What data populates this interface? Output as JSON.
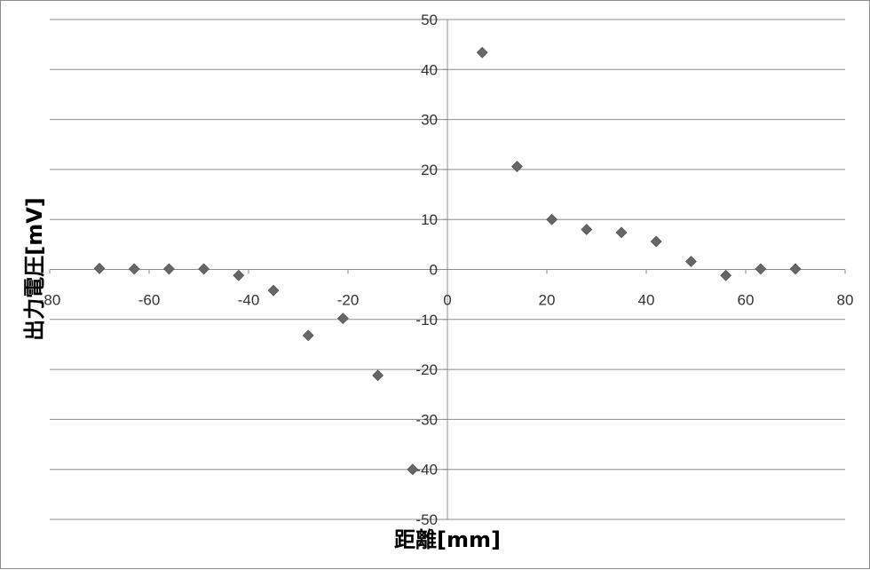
{
  "chart_data": {
    "type": "scatter",
    "title": "",
    "xlabel": "距離[mm]",
    "ylabel": "出力電圧[mV]",
    "xlim": [
      -80,
      80
    ],
    "ylim": [
      -50,
      50
    ],
    "x_ticks": [
      -80,
      -60,
      -40,
      -20,
      0,
      20,
      40,
      60,
      80
    ],
    "y_ticks": [
      50,
      40,
      30,
      20,
      10,
      0,
      -10,
      -20,
      -30,
      -40,
      -50
    ],
    "grid": "horizontal",
    "legend": "none",
    "marker": "diamond",
    "marker_color": "#666666",
    "series": [
      {
        "points": [
          {
            "x": -70,
            "y": 0.2
          },
          {
            "x": -63,
            "y": 0.1
          },
          {
            "x": -56,
            "y": 0.1
          },
          {
            "x": -49,
            "y": 0.1
          },
          {
            "x": -42,
            "y": -1.2
          },
          {
            "x": -35,
            "y": -4.2
          },
          {
            "x": -28,
            "y": -13.2
          },
          {
            "x": -21,
            "y": -9.8
          },
          {
            "x": -14,
            "y": -21.2
          },
          {
            "x": -7,
            "y": -40.0
          },
          {
            "x": 7,
            "y": 43.4
          },
          {
            "x": 14,
            "y": 20.6
          },
          {
            "x": 21,
            "y": 10.0
          },
          {
            "x": 28,
            "y": 8.0
          },
          {
            "x": 35,
            "y": 7.4
          },
          {
            "x": 42,
            "y": 5.6
          },
          {
            "x": 49,
            "y": 1.6
          },
          {
            "x": 56,
            "y": -1.2
          },
          {
            "x": 63,
            "y": 0.1
          },
          {
            "x": 70,
            "y": 0.1
          }
        ]
      }
    ]
  }
}
